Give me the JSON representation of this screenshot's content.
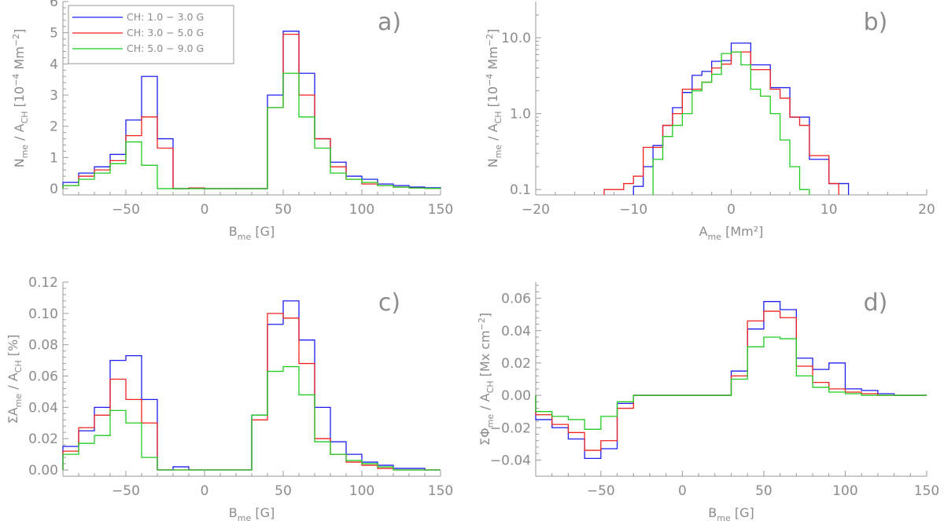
{
  "colors": {
    "blue": "#1e1eee",
    "red": "#ee2222",
    "green": "#22cc22",
    "axis": "#9a9a9a",
    "text": "#8c8c8c"
  },
  "legend": [
    "CH: 1.0 − 3.0 G",
    "CH: 3.0 − 5.0 G",
    "CH: 5.0 − 9.0 G"
  ],
  "chart_data": [
    {
      "id": "a",
      "type": "line",
      "panel_label": "a)",
      "xlabel": {
        "main": "B",
        "sub": "me",
        "unit": " [G]"
      },
      "ylabel": {
        "num": "N",
        "num_sub": "me",
        "den": "A",
        "den_sub": "CH",
        "unit_pre": "[10",
        "unit_sup": "−4",
        "unit_mid": " Mm",
        "unit_sup2": "−2",
        "unit_post": "]"
      },
      "xlim": [
        -90,
        150
      ],
      "ylim": [
        -0.2,
        6
      ],
      "yscale": "linear",
      "xticks": [
        -50,
        0,
        50,
        100,
        150
      ],
      "xticklabels": [
        "−50",
        "0",
        "50",
        "100",
        "150"
      ],
      "yticks": [
        0,
        1,
        2,
        3,
        4,
        5,
        6
      ],
      "yticklabels": [
        "0",
        "1",
        "2",
        "3",
        "4",
        "5",
        "6"
      ],
      "series": [
        {
          "name": "CH: 1.0 − 3.0 G",
          "color": "blue",
          "edges": [
            -90,
            -80,
            -70,
            -60,
            -50,
            -40,
            -30,
            -20,
            -10,
            0,
            10,
            20,
            30,
            40,
            50,
            60,
            70,
            80,
            90,
            100,
            110,
            120,
            130,
            140,
            150
          ],
          "values": [
            0.2,
            0.5,
            0.7,
            1.1,
            2.2,
            3.6,
            1.6,
            0,
            0.02,
            0,
            0,
            0,
            0,
            3.0,
            5.05,
            3.7,
            1.6,
            0.85,
            0.4,
            0.3,
            0.15,
            0.1,
            0.05,
            0.03
          ]
        },
        {
          "name": "CH: 3.0 − 5.0 G",
          "color": "red",
          "edges": [
            -90,
            -80,
            -70,
            -60,
            -50,
            -40,
            -30,
            -20,
            -10,
            0,
            10,
            20,
            30,
            40,
            50,
            60,
            70,
            80,
            90,
            100,
            110,
            120,
            130,
            140,
            150
          ],
          "values": [
            0.1,
            0.4,
            0.6,
            0.9,
            1.7,
            2.3,
            1.3,
            0,
            0.02,
            0,
            0,
            0,
            0,
            2.6,
            4.95,
            3.0,
            1.6,
            0.7,
            0.3,
            0.15,
            0.1,
            0.05,
            0.02,
            0.01
          ]
        },
        {
          "name": "CH: 5.0 − 9.0 G",
          "color": "green",
          "edges": [
            -90,
            -80,
            -70,
            -60,
            -50,
            -40,
            -30,
            -20,
            -10,
            0,
            10,
            20,
            30,
            40,
            50,
            60,
            70,
            80,
            90,
            100,
            110,
            120,
            130,
            140,
            150
          ],
          "values": [
            0.1,
            0.3,
            0.5,
            0.8,
            1.5,
            0.75,
            0,
            0,
            0,
            0,
            0,
            0,
            0,
            2.6,
            3.7,
            2.3,
            1.3,
            0.5,
            0.3,
            0.2,
            0.1,
            0.05,
            0.02,
            0.01
          ]
        }
      ]
    },
    {
      "id": "b",
      "type": "line",
      "panel_label": "b)",
      "xlabel": {
        "main": "A",
        "sub": "me",
        "unit": " [Mm²]"
      },
      "ylabel": {
        "num": "N",
        "num_sub": "me",
        "den": "A",
        "den_sub": "CH",
        "unit_pre": "[10",
        "unit_sup": "−4",
        "unit_mid": " Mm",
        "unit_sup2": "−2",
        "unit_post": "]"
      },
      "xlim": [
        -20,
        20
      ],
      "ylim": [
        0.085,
        30
      ],
      "yscale": "log",
      "xticks": [
        -20,
        -10,
        0,
        10,
        20
      ],
      "xticklabels": [
        "−20",
        "−10",
        "0",
        "10",
        "20"
      ],
      "yticks": [
        0.1,
        1,
        10
      ],
      "yticklabels": [
        "0.1",
        "1.0",
        "10.0"
      ],
      "series": [
        {
          "name": "CH: 1.0 − 3.0 G",
          "color": "blue",
          "edges": [
            -10,
            -9,
            -8,
            -7,
            -6,
            -5,
            -4,
            -3,
            -2,
            -1,
            0,
            1,
            2,
            3,
            4,
            5,
            6,
            7,
            8,
            9,
            10,
            11,
            12
          ],
          "values": [
            0.11,
            0.2,
            0.38,
            0.7,
            1.2,
            1.9,
            3.2,
            3.6,
            4.9,
            5.0,
            8.5,
            8.5,
            4.4,
            4.4,
            2.2,
            2.2,
            0.9,
            0.9,
            0.25,
            0.25,
            0.12,
            0.12
          ]
        },
        {
          "name": "CH: 3.0 − 5.0 G",
          "color": "red",
          "edges": [
            -13,
            -12,
            -11,
            -10,
            -9,
            -8,
            -7,
            -6,
            -5,
            -4,
            -3,
            -2,
            -1,
            0,
            1,
            2,
            3,
            4,
            5,
            6,
            7,
            8,
            9,
            10,
            11
          ],
          "values": [
            0.1,
            0.1,
            0.12,
            0.15,
            0.36,
            0.36,
            0.7,
            1.0,
            2.1,
            2.1,
            2.6,
            4.0,
            4.5,
            6.5,
            6.5,
            3.8,
            3.8,
            2.1,
            1.6,
            0.9,
            0.7,
            0.28,
            0.28,
            0.12
          ]
        },
        {
          "name": "CH: 5.0 − 9.0 G",
          "color": "green",
          "edges": [
            -8,
            -7,
            -6,
            -5,
            -4,
            -3,
            -2,
            -1,
            0,
            1,
            2,
            3,
            4,
            5,
            6,
            7,
            8
          ],
          "values": [
            0.25,
            0.5,
            0.7,
            1.0,
            2.0,
            2.6,
            3.3,
            6.2,
            6.5,
            4.4,
            2.1,
            1.7,
            1.0,
            0.45,
            0.2,
            0.1
          ]
        }
      ]
    },
    {
      "id": "c",
      "type": "line",
      "panel_label": "c)",
      "xlabel": {
        "main": "B",
        "sub": "me",
        "unit": " [G]"
      },
      "ylabel": {
        "num": "ΣA",
        "num_sub": "me",
        "den": "A",
        "den_sub": "CH",
        "unit_pre": "[%]",
        "unit_sup": "",
        "unit_mid": "",
        "unit_sup2": "",
        "unit_post": ""
      },
      "xlim": [
        -90,
        150
      ],
      "ylim": [
        -0.004,
        0.12
      ],
      "yscale": "linear",
      "xticks": [
        -50,
        0,
        50,
        100,
        150
      ],
      "xticklabels": [
        "−50",
        "0",
        "50",
        "100",
        "150"
      ],
      "yticks": [
        0,
        0.02,
        0.04,
        0.06,
        0.08,
        0.1,
        0.12
      ],
      "yticklabels": [
        "0.00",
        "0.02",
        "0.04",
        "0.06",
        "0.08",
        "0.10",
        "0.12"
      ],
      "series": [
        {
          "name": "CH: 1.0 − 3.0 G",
          "color": "blue",
          "edges": [
            -90,
            -80,
            -70,
            -60,
            -50,
            -40,
            -30,
            -20,
            -10,
            0,
            10,
            20,
            30,
            40,
            50,
            60,
            70,
            80,
            90,
            100,
            110,
            120,
            130,
            140,
            150
          ],
          "values": [
            0.015,
            0.025,
            0.04,
            0.07,
            0.073,
            0.045,
            0,
            0.002,
            0,
            0,
            0,
            0,
            0.035,
            0.093,
            0.108,
            0.083,
            0.04,
            0.018,
            0.01,
            0.005,
            0.003,
            0.001,
            0.001,
            0
          ]
        },
        {
          "name": "CH: 3.0 − 5.0 G",
          "color": "red",
          "edges": [
            -90,
            -80,
            -70,
            -60,
            -50,
            -40,
            -30,
            -20,
            -10,
            0,
            10,
            20,
            30,
            40,
            50,
            60,
            70,
            80,
            90,
            100,
            110,
            120,
            130,
            140,
            150
          ],
          "values": [
            0.012,
            0.027,
            0.035,
            0.058,
            0.045,
            0.03,
            0,
            0,
            0,
            0,
            0,
            0,
            0.032,
            0.1,
            0.097,
            0.068,
            0.02,
            0.01,
            0.005,
            0.003,
            0.001,
            0,
            0,
            0
          ]
        },
        {
          "name": "CH: 5.0 − 9.0 G",
          "color": "green",
          "edges": [
            -90,
            -80,
            -70,
            -60,
            -50,
            -40,
            -30,
            -20,
            -10,
            0,
            10,
            20,
            30,
            40,
            50,
            60,
            70,
            80,
            90,
            100,
            110,
            120,
            130,
            140,
            150
          ],
          "values": [
            0.01,
            0.017,
            0.022,
            0.038,
            0.03,
            0.008,
            0,
            0,
            0,
            0,
            0,
            0,
            0.035,
            0.063,
            0.066,
            0.048,
            0.018,
            0.01,
            0.006,
            0.004,
            0.002,
            0,
            0,
            0
          ]
        }
      ]
    },
    {
      "id": "d",
      "type": "line",
      "panel_label": "d)",
      "xlabel": {
        "main": "B",
        "sub": "me",
        "unit": " [G]"
      },
      "ylabel": {
        "num": "ΣΦ",
        "num_sub": "me",
        "den": "A",
        "den_sub": "CH",
        "unit_pre": "[Mx cm",
        "unit_sup": "−2",
        "unit_mid": "",
        "unit_sup2": "",
        "unit_post": "]"
      },
      "xlim": [
        -90,
        150
      ],
      "ylim": [
        -0.05,
        0.07
      ],
      "yscale": "linear",
      "xticks": [
        -50,
        0,
        50,
        100,
        150
      ],
      "xticklabels": [
        "−50",
        "0",
        "50",
        "100",
        "150"
      ],
      "yticks": [
        -0.04,
        -0.02,
        0,
        0.02,
        0.04,
        0.06
      ],
      "yticklabels": [
        "−0.04",
        "−0.02",
        "0.00",
        "0.02",
        "0.04",
        "0.06"
      ],
      "series": [
        {
          "name": "CH: 1.0 − 3.0 G",
          "color": "blue",
          "edges": [
            -90,
            -80,
            -70,
            -60,
            -50,
            -40,
            -30,
            -20,
            -10,
            0,
            10,
            20,
            30,
            40,
            50,
            60,
            70,
            80,
            90,
            100,
            110,
            120,
            130,
            140,
            150
          ],
          "values": [
            -0.015,
            -0.02,
            -0.027,
            -0.039,
            -0.033,
            -0.005,
            0,
            0,
            0,
            0,
            0,
            0,
            0.015,
            0.041,
            0.058,
            0.053,
            0.023,
            0.016,
            0.02,
            0.004,
            0.003,
            0.001,
            0,
            0
          ]
        },
        {
          "name": "CH: 3.0 − 5.0 G",
          "color": "red",
          "edges": [
            -90,
            -80,
            -70,
            -60,
            -50,
            -40,
            -30,
            -20,
            -10,
            0,
            10,
            20,
            30,
            40,
            50,
            60,
            70,
            80,
            90,
            100,
            110,
            120,
            130,
            140,
            150
          ],
          "values": [
            -0.012,
            -0.018,
            -0.023,
            -0.034,
            -0.028,
            -0.008,
            0,
            0,
            0,
            0,
            0,
            0,
            0.012,
            0.046,
            0.052,
            0.048,
            0.018,
            0.008,
            0.004,
            0.002,
            0.001,
            0,
            0,
            0
          ]
        },
        {
          "name": "CH: 5.0 − 9.0 G",
          "color": "green",
          "edges": [
            -90,
            -80,
            -70,
            -60,
            -50,
            -40,
            -30,
            -20,
            -10,
            0,
            10,
            20,
            30,
            40,
            50,
            60,
            70,
            80,
            90,
            100,
            110,
            120,
            130,
            140,
            150
          ],
          "values": [
            -0.01,
            -0.013,
            -0.015,
            -0.021,
            -0.013,
            -0.004,
            0,
            0,
            0,
            0,
            0,
            0,
            0.01,
            0.03,
            0.036,
            0.035,
            0.012,
            0.005,
            0.002,
            0.001,
            0,
            0,
            0,
            0
          ]
        }
      ]
    }
  ]
}
